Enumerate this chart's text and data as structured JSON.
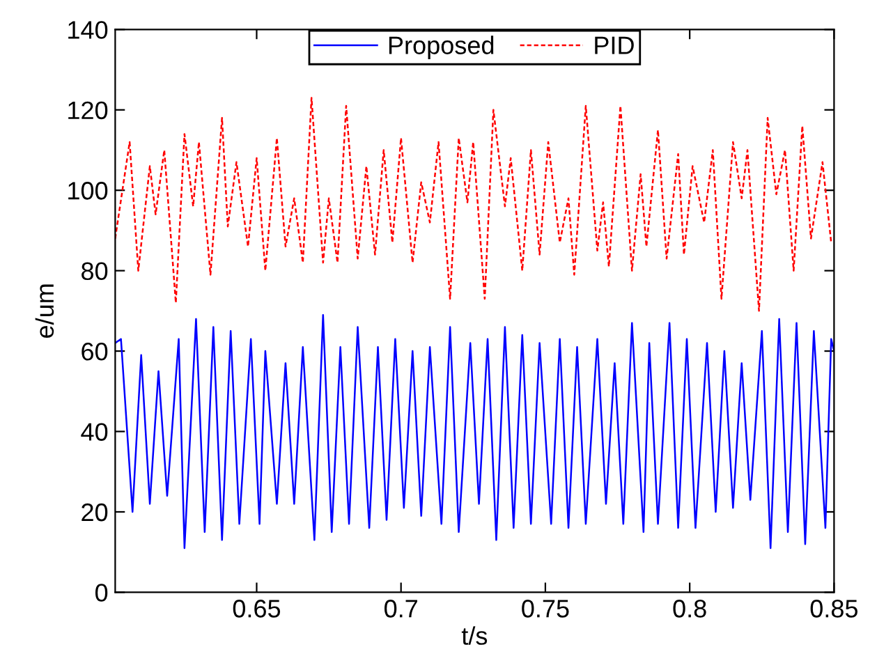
{
  "chart_data": {
    "type": "line",
    "xlabel": "t/s",
    "ylabel": "e/um",
    "xlim": [
      0.601,
      0.85
    ],
    "ylim": [
      0,
      140
    ],
    "xticks": [
      0.65,
      0.7,
      0.75,
      0.8,
      0.85
    ],
    "yticks": [
      0,
      20,
      40,
      60,
      80,
      100,
      120,
      140
    ],
    "grid": false,
    "legend": "top",
    "series": [
      {
        "name": "Proposed",
        "color": "#0000ff",
        "line_style": "solid",
        "x": [
          0.601,
          0.603,
          0.607,
          0.61,
          0.613,
          0.616,
          0.619,
          0.623,
          0.625,
          0.629,
          0.632,
          0.635,
          0.638,
          0.641,
          0.644,
          0.648,
          0.651,
          0.653,
          0.657,
          0.66,
          0.663,
          0.666,
          0.67,
          0.673,
          0.676,
          0.679,
          0.682,
          0.685,
          0.689,
          0.692,
          0.695,
          0.698,
          0.701,
          0.704,
          0.707,
          0.71,
          0.714,
          0.717,
          0.72,
          0.724,
          0.727,
          0.73,
          0.733,
          0.736,
          0.739,
          0.742,
          0.745,
          0.748,
          0.752,
          0.755,
          0.758,
          0.761,
          0.764,
          0.768,
          0.771,
          0.774,
          0.777,
          0.78,
          0.784,
          0.786,
          0.789,
          0.793,
          0.796,
          0.799,
          0.802,
          0.806,
          0.809,
          0.812,
          0.815,
          0.818,
          0.821,
          0.825,
          0.828,
          0.831,
          0.834,
          0.837,
          0.84,
          0.843,
          0.847,
          0.849,
          0.85
        ],
        "values": [
          62,
          63,
          20,
          59,
          22,
          55,
          24,
          63,
          11,
          68,
          15,
          66,
          13,
          65,
          17,
          63,
          17,
          60,
          22,
          57,
          22,
          61,
          13,
          69,
          15,
          61,
          17,
          66,
          16,
          61,
          18,
          63,
          21,
          60,
          19,
          61,
          17,
          66,
          15,
          62,
          22,
          63,
          13,
          66,
          16,
          64,
          17,
          62,
          17,
          63,
          16,
          61,
          17,
          63,
          22,
          57,
          17,
          67,
          15,
          62,
          17,
          67,
          16,
          63,
          16,
          62,
          20,
          60,
          21,
          57,
          23,
          65,
          11,
          68,
          15,
          67,
          12,
          65,
          16,
          63,
          60
        ]
      },
      {
        "name": "PID",
        "color": "#ff0000",
        "line_style": "dashed",
        "x": [
          0.601,
          0.606,
          0.609,
          0.613,
          0.615,
          0.618,
          0.622,
          0.625,
          0.628,
          0.63,
          0.634,
          0.638,
          0.64,
          0.643,
          0.647,
          0.65,
          0.653,
          0.657,
          0.66,
          0.663,
          0.666,
          0.669,
          0.673,
          0.675,
          0.678,
          0.681,
          0.685,
          0.688,
          0.691,
          0.694,
          0.697,
          0.7,
          0.704,
          0.707,
          0.71,
          0.713,
          0.717,
          0.72,
          0.723,
          0.725,
          0.729,
          0.732,
          0.736,
          0.738,
          0.742,
          0.745,
          0.748,
          0.751,
          0.755,
          0.758,
          0.76,
          0.764,
          0.768,
          0.77,
          0.772,
          0.776,
          0.78,
          0.783,
          0.785,
          0.789,
          0.792,
          0.796,
          0.798,
          0.801,
          0.805,
          0.808,
          0.811,
          0.815,
          0.818,
          0.82,
          0.824,
          0.827,
          0.83,
          0.833,
          0.836,
          0.839,
          0.842,
          0.846,
          0.849
        ],
        "values": [
          88,
          112,
          80,
          106,
          94,
          110,
          72,
          114,
          96,
          112,
          79,
          118,
          91,
          107,
          86,
          108,
          80,
          113,
          86,
          98,
          82,
          123,
          82,
          98,
          82,
          121,
          83,
          106,
          84,
          110,
          87,
          113,
          82,
          102,
          92,
          112,
          73,
          113,
          97,
          112,
          73,
          120,
          96,
          108,
          80,
          110,
          84,
          112,
          87,
          98,
          79,
          121,
          85,
          97,
          81,
          121,
          80,
          104,
          86,
          115,
          83,
          109,
          84,
          106,
          92,
          110,
          73,
          112,
          98,
          110,
          70,
          118,
          99,
          110,
          80,
          116,
          88,
          107,
          87
        ]
      }
    ]
  }
}
